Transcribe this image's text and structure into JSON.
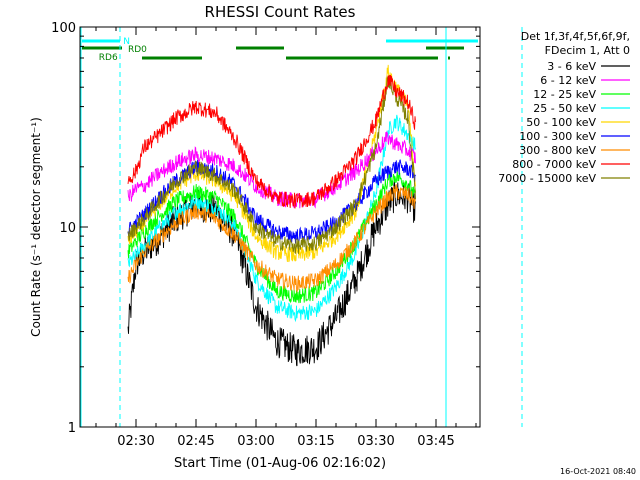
{
  "chart_data": {
    "type": "line",
    "title": "RHESSI Count Rates",
    "xlabel": "Start Time (01-Aug-06 02:16:02)",
    "ylabel": "Count Rate (s⁻¹ detector segment⁻¹)",
    "yscale": "log",
    "ylim": [
      1,
      100
    ],
    "xlim": [
      "02:16",
      "03:56"
    ],
    "ytick_labels": [
      "1",
      "10",
      "100"
    ],
    "xtick_labels": [
      "02:30",
      "02:45",
      "03:00",
      "03:15",
      "03:30",
      "03:45"
    ],
    "x": [
      "02:28",
      "02:30",
      "02:32",
      "02:35",
      "02:40",
      "02:45",
      "02:50",
      "02:55",
      "03:00",
      "03:05",
      "03:10",
      "03:15",
      "03:20",
      "03:25",
      "03:30",
      "03:33",
      "03:35",
      "03:38",
      "03:40"
    ],
    "series": [
      {
        "name": "3 - 6 keV",
        "color": "#000000",
        "values": [
          3.0,
          6.5,
          7.5,
          8.5,
          11,
          13,
          12,
          9,
          4,
          2.7,
          2.4,
          2.5,
          3.5,
          5.5,
          10,
          13,
          14.5,
          14,
          12
        ]
      },
      {
        "name": "6 - 12 keV",
        "color": "#ff00ff",
        "values": [
          14,
          15.5,
          16,
          18,
          21,
          23,
          22,
          20,
          16,
          14,
          13.5,
          13.8,
          16,
          19,
          24,
          28,
          26,
          24,
          22
        ]
      },
      {
        "name": "12 - 25 keV",
        "color": "#00ff00",
        "values": [
          7.5,
          8.5,
          9.5,
          11,
          13.5,
          15,
          14,
          11,
          6.5,
          4.8,
          4.5,
          4.7,
          6,
          8.5,
          13,
          17,
          18,
          16.5,
          14
        ]
      },
      {
        "name": "25 - 50 keV",
        "color": "#00ffff",
        "values": [
          6.5,
          7.2,
          8,
          9.5,
          12,
          13.5,
          12.5,
          10,
          5.5,
          4.0,
          3.7,
          3.8,
          5,
          7.5,
          15,
          30,
          34,
          29,
          25
        ]
      },
      {
        "name": "50 - 100 keV",
        "color": "#ffd700",
        "values": [
          8.5,
          9.5,
          10.5,
          12.5,
          16,
          18.5,
          17,
          14,
          9,
          7.5,
          7.2,
          7.5,
          9,
          12,
          30,
          60,
          50,
          40,
          16
        ]
      },
      {
        "name": "100 - 300 keV",
        "color": "#0000ff",
        "values": [
          9.5,
          10.5,
          11.5,
          13.5,
          17,
          20,
          19,
          16,
          11,
          9.5,
          9,
          9.3,
          10.5,
          13,
          17,
          19,
          20,
          19.5,
          18
        ]
      },
      {
        "name": "300 - 800 keV",
        "color": "#ff8c00",
        "values": [
          5.5,
          6.5,
          7.5,
          8.5,
          10.5,
          12,
          11,
          9,
          6.5,
          5.5,
          5.2,
          5.4,
          6.5,
          8.5,
          12,
          14,
          15,
          14.5,
          13
        ]
      },
      {
        "name": "800 - 7000 keV",
        "color": "#ff0000",
        "values": [
          17,
          19,
          25,
          28,
          35,
          40,
          37,
          27,
          17,
          14,
          13.5,
          14,
          17,
          22,
          34,
          55,
          48,
          42,
          32
        ]
      },
      {
        "name": "7000 - 15000 keV",
        "color": "#808000",
        "values": [
          9,
          10,
          11,
          13,
          17,
          20,
          18,
          15,
          10,
          8.5,
          8,
          8.3,
          10,
          13,
          25,
          55,
          45,
          35,
          14
        ]
      }
    ],
    "legend": {
      "placement": "right",
      "header_lines": [
        "Det 1f,3f,4f,5f,6f,9f,",
        "FDecim 1, Att 0"
      ]
    },
    "attenuator_bars": {
      "labels": [
        "N",
        "RD0",
        "RD6"
      ],
      "N_color": "#00ffff",
      "rd_color": "#008000"
    },
    "vertical_markers_color": "#00ffff",
    "timestamp": "16-Oct-2021 08:40"
  }
}
